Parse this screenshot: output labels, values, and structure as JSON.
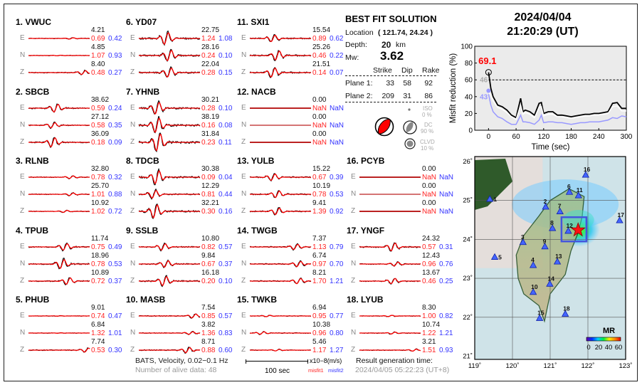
{
  "stations": [
    {
      "label": "1.  VWUC",
      "traces": [
        {
          "comp": "E",
          "amp": "4.21",
          "m1": "0.69",
          "m2": "0.42"
        },
        {
          "comp": "N",
          "amp": "4.85",
          "m1": "1.07",
          "m2": "0.93"
        },
        {
          "comp": "Z",
          "amp": "8.40",
          "m1": "0.48",
          "m2": "0.27"
        }
      ]
    },
    {
      "label": "2.  SBCB",
      "traces": [
        {
          "comp": "E",
          "amp": "38.62",
          "m1": "0.59",
          "m2": "0.24"
        },
        {
          "comp": "N",
          "amp": "27.12",
          "m1": "0.58",
          "m2": "0.35"
        },
        {
          "comp": "Z",
          "amp": "36.09",
          "m1": "0.18",
          "m2": "0.09"
        }
      ]
    },
    {
      "label": "3.  RLNB",
      "traces": [
        {
          "comp": "E",
          "amp": "32.80",
          "m1": "0.78",
          "m2": "0.32"
        },
        {
          "comp": "N",
          "amp": "25.70",
          "m1": "1.01",
          "m2": "0.88"
        },
        {
          "comp": "Z",
          "amp": "10.92",
          "m1": "1.02",
          "m2": "0.72"
        }
      ]
    },
    {
      "label": "4.  TPUB",
      "traces": [
        {
          "comp": "E",
          "amp": "11.74",
          "m1": "0.75",
          "m2": "0.49"
        },
        {
          "comp": "N",
          "amp": "18.96",
          "m1": "0.78",
          "m2": "0.53"
        },
        {
          "comp": "Z",
          "amp": "10.89",
          "m1": "0.72",
          "m2": "0.37"
        }
      ]
    },
    {
      "label": "5.  PHUB",
      "traces": [
        {
          "comp": "E",
          "amp": "9.01",
          "m1": "0.74",
          "m2": "0.47"
        },
        {
          "comp": "N",
          "amp": "6.84",
          "m1": "1.32",
          "m2": "1.01"
        },
        {
          "comp": "Z",
          "amp": "7.74",
          "m1": "0.53",
          "m2": "0.30"
        }
      ]
    },
    {
      "label": "6.  YD07",
      "traces": [
        {
          "comp": "E",
          "amp": "22.75",
          "m1": "1.24",
          "m2": "1.08"
        },
        {
          "comp": "N",
          "amp": "28.16",
          "m1": "0.24",
          "m2": "0.10"
        },
        {
          "comp": "Z",
          "amp": "22.04",
          "m1": "0.28",
          "m2": "0.15"
        }
      ]
    },
    {
      "label": "7.  YHNB",
      "traces": [
        {
          "comp": "E",
          "amp": "30.21",
          "m1": "0.28",
          "m2": "0.10"
        },
        {
          "comp": "N",
          "amp": "38.19",
          "m1": "0.16",
          "m2": "0.08"
        },
        {
          "comp": "Z",
          "amp": "31.84",
          "m1": "0.23",
          "m2": "0.11"
        }
      ]
    },
    {
      "label": "8.  TDCB",
      "traces": [
        {
          "comp": "E",
          "amp": "30.38",
          "m1": "0.09",
          "m2": "0.04"
        },
        {
          "comp": "N",
          "amp": "12.29",
          "m1": "0.81",
          "m2": "0.44"
        },
        {
          "comp": "Z",
          "amp": "32.21",
          "m1": "0.30",
          "m2": "0.16"
        }
      ]
    },
    {
      "label": "9.  SSLB",
      "traces": [
        {
          "comp": "E",
          "amp": "10.80",
          "m1": "0.82",
          "m2": "0.57"
        },
        {
          "comp": "N",
          "amp": "9.84",
          "m1": "0.67",
          "m2": "0.37"
        },
        {
          "comp": "Z",
          "amp": "16.18",
          "m1": "0.20",
          "m2": "0.10"
        }
      ]
    },
    {
      "label": "10. MASB",
      "traces": [
        {
          "comp": "E",
          "amp": "7.54",
          "m1": "0.85",
          "m2": "0.57"
        },
        {
          "comp": "N",
          "amp": "3.82",
          "m1": "1.36",
          "m2": "0.83"
        },
        {
          "comp": "Z",
          "amp": "8.71",
          "m1": "0.88",
          "m2": "0.60"
        }
      ]
    },
    {
      "label": "11. SXI1",
      "traces": [
        {
          "comp": "E",
          "amp": "15.54",
          "m1": "0.89",
          "m2": "0.62"
        },
        {
          "comp": "N",
          "amp": "25.26",
          "m1": "0.46",
          "m2": "0.22"
        },
        {
          "comp": "Z",
          "amp": "21.51",
          "m1": "0.14",
          "m2": "0.07"
        }
      ]
    },
    {
      "label": "12. NACB",
      "traces": [
        {
          "comp": "E",
          "amp": "0.00",
          "m1": "NaN",
          "m2": "NaN"
        },
        {
          "comp": "N",
          "amp": "0.00",
          "m1": "NaN",
          "m2": "NaN"
        },
        {
          "comp": "Z",
          "amp": "0.00",
          "m1": "NaN",
          "m2": "NaN"
        }
      ]
    },
    {
      "label": "13. YULB",
      "traces": [
        {
          "comp": "E",
          "amp": "15.22",
          "m1": "0.67",
          "m2": "0.39"
        },
        {
          "comp": "N",
          "amp": "10.19",
          "m1": "0.78",
          "m2": "0.53"
        },
        {
          "comp": "Z",
          "amp": "9.41",
          "m1": "1.39",
          "m2": "0.92"
        }
      ]
    },
    {
      "label": "14. TWGB",
      "traces": [
        {
          "comp": "E",
          "amp": "7.37",
          "m1": "1.13",
          "m2": "0.79"
        },
        {
          "comp": "N",
          "amp": "6.74",
          "m1": "0.97",
          "m2": "0.70"
        },
        {
          "comp": "Z",
          "amp": "8.21",
          "m1": "1.70",
          "m2": "1.21"
        }
      ]
    },
    {
      "label": "15. TWKB",
      "traces": [
        {
          "comp": "E",
          "amp": "6.94",
          "m1": "0.95",
          "m2": "0.77"
        },
        {
          "comp": "N",
          "amp": "10.38",
          "m1": "0.96",
          "m2": "0.80"
        },
        {
          "comp": "Z",
          "amp": "5.46",
          "m1": "1.17",
          "m2": "1.27"
        }
      ]
    },
    {
      "label": "16. PCYB",
      "traces": [
        {
          "comp": "E",
          "amp": "0.00",
          "m1": "NaN",
          "m2": "NaN"
        },
        {
          "comp": "N",
          "amp": "0.00",
          "m1": "NaN",
          "m2": "NaN"
        },
        {
          "comp": "Z",
          "amp": "0.00",
          "m1": "NaN",
          "m2": "NaN"
        }
      ]
    },
    {
      "label": "17. YNGF",
      "traces": [
        {
          "comp": "E",
          "amp": "24.32",
          "m1": "0.57",
          "m2": "0.31"
        },
        {
          "comp": "N",
          "amp": "12.43",
          "m1": "0.96",
          "m2": "0.76"
        },
        {
          "comp": "Z",
          "amp": "13.67",
          "m1": "0.46",
          "m2": "0.25"
        }
      ]
    },
    {
      "label": "18. LYUB",
      "traces": [
        {
          "comp": "E",
          "amp": "8.30",
          "m1": "1.00",
          "m2": "0.82"
        },
        {
          "comp": "N",
          "amp": "10.74",
          "m1": "1.22",
          "m2": "1.21"
        },
        {
          "comp": "Z",
          "amp": "3.21",
          "m1": "1.51",
          "m2": "0.93"
        }
      ]
    }
  ],
  "solution": {
    "title": "BEST FIT SOLUTION",
    "location_label": "Location",
    "location_value": "( 121.74,  24.24 )",
    "depth_label": "Depth:",
    "depth_value": "20",
    "depth_unit": "km",
    "mw_label": "Mw:",
    "mw_value": "3.62",
    "columns": [
      "Strike",
      "Dip",
      "Rake"
    ],
    "planes": [
      {
        "label": "Plane 1:",
        "strike": "33",
        "dip": "58",
        "rake": "92"
      },
      {
        "label": "Plane 2:",
        "strike": "209",
        "dip": "31",
        "rake": "86"
      }
    ],
    "iso_label": "ISO",
    "iso_value": "0 %",
    "dc_label": "DC",
    "dc_value": "90 %",
    "clvd_label": "CLVD",
    "clvd_value": "10 %"
  },
  "event": {
    "date": "2024/04/04",
    "time": "21:20:29  (UT)"
  },
  "footer": {
    "network": "BATS, Velocity, 0.02−0.1 Hz",
    "alive": "Number of alive data: 48",
    "scale_label": "100 sec",
    "units": "x10−8(m/s)",
    "misfit1": "misfit1",
    "misfit2": "misfit2",
    "gen_label": "Result generation time:",
    "gen_time": "2024/04/05 05:22:23 (UT+8)"
  },
  "colors": {
    "observed": "#000000",
    "synthetic": "#ff0000",
    "misfit1": "#ff2222",
    "misfit2": "#3333ff"
  },
  "chart_data": {
    "type": "line",
    "xlabel": "Time (sec)",
    "ylabel": "Misfit reduction (%)",
    "xlim": [
      -30,
      300
    ],
    "ylim": [
      0,
      100
    ],
    "xticks": [
      0,
      60,
      120,
      180,
      240,
      300
    ],
    "yticks": [
      0,
      20,
      40,
      60,
      80,
      100
    ],
    "reference_line": 60,
    "max_label": "69.1",
    "start_labels": {
      "white": "46",
      "blue": "43"
    },
    "x": [
      0,
      5,
      10,
      20,
      30,
      40,
      50,
      60,
      70,
      75,
      80,
      90,
      100,
      110,
      115,
      120,
      130,
      140,
      150,
      160,
      170,
      180,
      190,
      200,
      210,
      220,
      230,
      240,
      250,
      260,
      270,
      280,
      290,
      300
    ],
    "series": [
      {
        "color": "#000000",
        "values": [
          69,
          50,
          40,
          30,
          28,
          24,
          18,
          15,
          38,
          22,
          24,
          22,
          18,
          32,
          33,
          20,
          22,
          22,
          18,
          18,
          17,
          16,
          17,
          18,
          19,
          19,
          20,
          20,
          21,
          22,
          32,
          33,
          26,
          26
        ]
      },
      {
        "color": "#ffffff",
        "values": [
          46,
          42,
          35,
          27,
          25,
          21,
          16,
          13,
          30,
          19,
          21,
          19,
          15,
          27,
          28,
          17,
          19,
          19,
          16,
          16,
          15,
          14,
          15,
          16,
          17,
          17,
          18,
          18,
          19,
          20,
          28,
          29,
          23,
          23
        ]
      },
      {
        "color": "#9999ff",
        "values": [
          43,
          30,
          22,
          16,
          14,
          10,
          7,
          7,
          18,
          10,
          10,
          9,
          7,
          12,
          18,
          9,
          10,
          10,
          9,
          9,
          8,
          7,
          8,
          9,
          9,
          10,
          10,
          10,
          11,
          12,
          15,
          14,
          17,
          16
        ]
      }
    ]
  },
  "map": {
    "lon_ticks": [
      "119˚",
      "120˚",
      "121˚",
      "122˚",
      "123˚"
    ],
    "lat_ticks": [
      "26˚",
      "25˚",
      "24˚",
      "23˚",
      "22˚",
      "21˚"
    ],
    "epicenter": {
      "lon": 121.74,
      "lat": 24.24
    },
    "stations": [
      {
        "id": "1",
        "lon": 119.4,
        "lat": 25.03
      },
      {
        "id": "2",
        "lon": 120.88,
        "lat": 24.83
      },
      {
        "id": "3",
        "lon": 120.28,
        "lat": 23.92
      },
      {
        "id": "4",
        "lon": 120.55,
        "lat": 23.33
      },
      {
        "id": "5",
        "lon": 119.53,
        "lat": 23.54
      },
      {
        "id": "6",
        "lon": 121.51,
        "lat": 25.21
      },
      {
        "id": "7",
        "lon": 121.26,
        "lat": 24.71
      },
      {
        "id": "8",
        "lon": 121.06,
        "lat": 24.28
      },
      {
        "id": "9",
        "lon": 120.86,
        "lat": 23.81
      },
      {
        "id": "10",
        "lon": 120.55,
        "lat": 22.64
      },
      {
        "id": "11",
        "lon": 121.75,
        "lat": 25.12
      },
      {
        "id": "12",
        "lon": 121.48,
        "lat": 24.21
      },
      {
        "id": "13",
        "lon": 121.19,
        "lat": 23.42
      },
      {
        "id": "14",
        "lon": 120.99,
        "lat": 22.85
      },
      {
        "id": "15",
        "lon": 120.72,
        "lat": 21.97
      },
      {
        "id": "16",
        "lon": 121.94,
        "lat": 25.65
      },
      {
        "id": "17",
        "lon": 122.84,
        "lat": 24.48
      },
      {
        "id": "18",
        "lon": 121.4,
        "lat": 22.08
      }
    ],
    "colorbar_title": "MR",
    "colorbar_ticks": [
      "0",
      "20",
      "40",
      "60"
    ]
  }
}
